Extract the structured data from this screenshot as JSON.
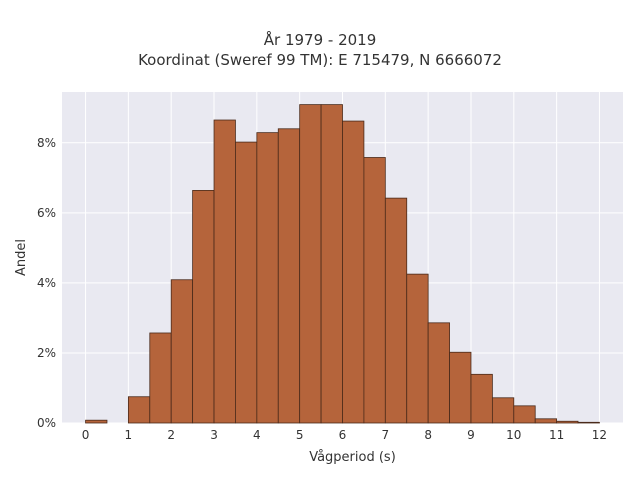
{
  "chart_data": {
    "type": "bar",
    "title": "År 1979 - 2019",
    "subtitle": "Koordinat (Sweref 99 TM): E 715479, N 6666072",
    "xlabel": "Vågperiod (s)",
    "ylabel": "Andel",
    "x_ticks": [
      0,
      1,
      2,
      3,
      4,
      5,
      6,
      7,
      8,
      9,
      10,
      11,
      12
    ],
    "y_ticks": [
      0,
      2,
      4,
      6,
      8
    ],
    "y_tick_labels": [
      "0%",
      "2%",
      "4%",
      "6%",
      "8%"
    ],
    "xlim": [
      -0.55,
      12.55
    ],
    "ylim": [
      0,
      9.45
    ],
    "bin_width": 0.5,
    "bins": [
      {
        "start": 0.0,
        "value": 0.08
      },
      {
        "start": 0.5,
        "value": 0.0
      },
      {
        "start": 1.0,
        "value": 0.75
      },
      {
        "start": 1.5,
        "value": 2.57
      },
      {
        "start": 2.0,
        "value": 4.09
      },
      {
        "start": 2.5,
        "value": 6.64
      },
      {
        "start": 3.0,
        "value": 8.65
      },
      {
        "start": 3.5,
        "value": 8.02
      },
      {
        "start": 4.0,
        "value": 8.29
      },
      {
        "start": 4.5,
        "value": 8.4
      },
      {
        "start": 5.0,
        "value": 9.09
      },
      {
        "start": 5.5,
        "value": 9.09
      },
      {
        "start": 6.0,
        "value": 8.62
      },
      {
        "start": 6.5,
        "value": 7.58
      },
      {
        "start": 7.0,
        "value": 6.42
      },
      {
        "start": 7.5,
        "value": 4.25
      },
      {
        "start": 8.0,
        "value": 2.86
      },
      {
        "start": 8.5,
        "value": 2.02
      },
      {
        "start": 9.0,
        "value": 1.39
      },
      {
        "start": 9.5,
        "value": 0.72
      },
      {
        "start": 10.0,
        "value": 0.49
      },
      {
        "start": 10.5,
        "value": 0.12
      },
      {
        "start": 11.0,
        "value": 0.05
      },
      {
        "start": 11.5,
        "value": 0.02
      }
    ],
    "bar_color": "#b5643b",
    "bar_edge_color": "#4a2a1a",
    "plot_background": "#e9e9f1",
    "grid": true,
    "grid_color": "#ffffff",
    "legend": "none"
  }
}
